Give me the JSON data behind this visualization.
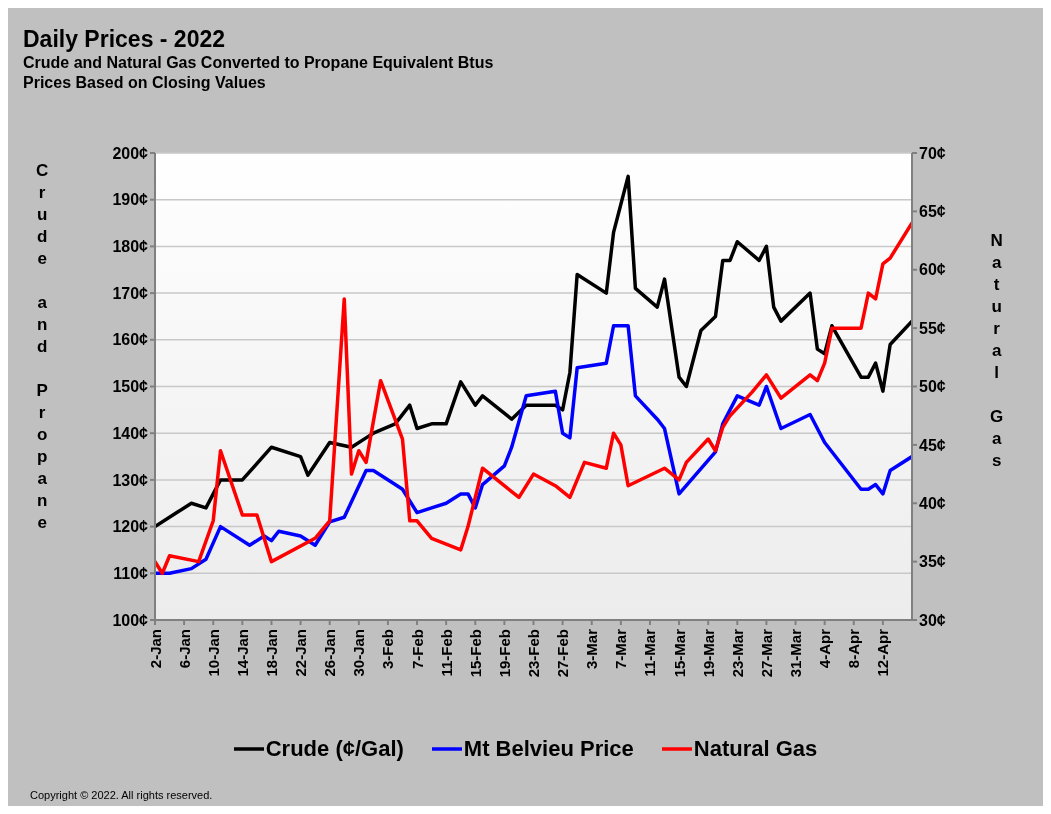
{
  "chart_data": {
    "type": "line",
    "title": "Daily Prices - 2022",
    "subtitle": "Crude and Natural Gas Converted to Propane Equivalent Btus\nPrices Based on Closing Values",
    "ylabel": "Crude and Propane",
    "y2label": "Natural Gas",
    "annotations": [
      "Copyright © 2022. All rights reserved."
    ],
    "xlim": [
      "--01-02",
      "--04-16"
    ],
    "xticks": [
      {
        "value": "--01-02",
        "label": "2-Jan"
      },
      {
        "value": "--01-06",
        "label": "6-Jan"
      },
      {
        "value": "--01-10",
        "label": "10-Jan"
      },
      {
        "value": "--01-14",
        "label": "14-Jan"
      },
      {
        "value": "--01-18",
        "label": "18-Jan"
      },
      {
        "value": "--01-22",
        "label": "22-Jan"
      },
      {
        "value": "--01-26",
        "label": "26-Jan"
      },
      {
        "value": "--01-30",
        "label": "30-Jan"
      },
      {
        "value": "--02-03",
        "label": "3-Feb"
      },
      {
        "value": "--02-07",
        "label": "7-Feb"
      },
      {
        "value": "--02-11",
        "label": "11-Feb"
      },
      {
        "value": "--02-15",
        "label": "15-Feb"
      },
      {
        "value": "--02-19",
        "label": "19-Feb"
      },
      {
        "value": "--02-23",
        "label": "23-Feb"
      },
      {
        "value": "--02-27",
        "label": "27-Feb"
      },
      {
        "value": "--03-03",
        "label": "3-Mar"
      },
      {
        "value": "--03-07",
        "label": "7-Mar"
      },
      {
        "value": "--03-11",
        "label": "11-Mar"
      },
      {
        "value": "--03-15",
        "label": "15-Mar"
      },
      {
        "value": "--03-19",
        "label": "19-Mar"
      },
      {
        "value": "--03-23",
        "label": "23-Mar"
      },
      {
        "value": "--03-27",
        "label": "27-Mar"
      },
      {
        "value": "--03-31",
        "label": "31-Mar"
      },
      {
        "value": "--04-04",
        "label": "4-Apr"
      },
      {
        "value": "--04-08",
        "label": "8-Apr"
      },
      {
        "value": "--04-12",
        "label": "12-Apr"
      }
    ],
    "ylim": [
      100,
      200
    ],
    "yticks": [
      {
        "value": 100,
        "label": "100¢"
      },
      {
        "value": 110,
        "label": "110¢"
      },
      {
        "value": 120,
        "label": "120¢"
      },
      {
        "value": 130,
        "label": "130¢"
      },
      {
        "value": 140,
        "label": "140¢"
      },
      {
        "value": 150,
        "label": "150¢"
      },
      {
        "value": 160,
        "label": "160¢"
      },
      {
        "value": 170,
        "label": "170¢"
      },
      {
        "value": 180,
        "label": "180¢"
      },
      {
        "value": 190,
        "label": "190¢"
      },
      {
        "value": 200,
        "label": "200¢"
      }
    ],
    "y2lim": [
      30,
      70
    ],
    "y2ticks": [
      {
        "value": 30,
        "label": "30¢"
      },
      {
        "value": 35,
        "label": "35¢"
      },
      {
        "value": 40,
        "label": "40¢"
      },
      {
        "value": 45,
        "label": "45¢"
      },
      {
        "value": 50,
        "label": "50¢"
      },
      {
        "value": 55,
        "label": "55¢"
      },
      {
        "value": 60,
        "label": "60¢"
      },
      {
        "value": 65,
        "label": "65¢"
      },
      {
        "value": 70,
        "label": "70¢"
      }
    ],
    "grid": "y",
    "legend": "bottom",
    "marker": "none",
    "line_style": "solid",
    "series": [
      {
        "name": "Crude (¢/Gal)",
        "color": "#000000",
        "x": [
          "--01-02",
          "--01-05",
          "--01-07",
          "--01-09",
          "--01-11",
          "--01-14",
          "--01-18",
          "--01-22",
          "--01-23",
          "--01-26",
          "--01-29",
          "--01-31",
          "--02-01",
          "--02-04",
          "--02-06",
          "--02-07",
          "--02-09",
          "--02-11",
          "--02-13",
          "--02-15",
          "--02-16",
          "--02-20",
          "--02-22",
          "--02-26",
          "--02-27",
          "--02-28",
          "--03-01",
          "--03-05",
          "--03-06",
          "--03-08",
          "--03-09",
          "--03-12",
          "--03-13",
          "--03-15",
          "--03-16",
          "--03-18",
          "--03-20",
          "--03-21",
          "--03-22",
          "--03-23",
          "--03-26",
          "--03-27",
          "--03-28",
          "--03-29",
          "--04-02",
          "--04-03",
          "--04-04",
          "--04-05",
          "--04-09",
          "--04-10",
          "--04-11",
          "--04-12",
          "--04-13",
          "--04-16"
        ],
        "values": [
          120,
          123,
          125,
          124,
          130,
          130,
          137,
          135,
          131,
          138,
          137,
          139,
          140,
          142,
          146,
          141,
          142,
          142,
          151,
          146,
          148,
          143,
          146,
          146,
          145,
          153,
          174,
          170,
          183,
          195,
          171,
          167,
          173,
          152,
          150,
          162,
          165,
          177,
          177,
          181,
          177,
          180,
          167,
          164,
          170,
          158,
          157,
          163,
          152,
          152,
          155,
          149,
          159,
          164
        ]
      },
      {
        "name": "Mt Belvieu Price",
        "color": "#0000ff",
        "x": [
          "--01-02",
          "--01-04",
          "--01-07",
          "--01-09",
          "--01-11",
          "--01-15",
          "--01-17",
          "--01-18",
          "--01-19",
          "--01-22",
          "--01-24",
          "--01-26",
          "--01-28",
          "--01-31",
          "--02-01",
          "--02-04",
          "--02-05",
          "--02-07",
          "--02-09",
          "--02-11",
          "--02-13",
          "--02-14",
          "--02-15",
          "--02-16",
          "--02-19",
          "--02-20",
          "--02-22",
          "--02-26",
          "--02-27",
          "--02-28",
          "--03-01",
          "--03-05",
          "--03-06",
          "--03-08",
          "--03-09",
          "--03-12",
          "--03-13",
          "--03-15",
          "--03-20",
          "--03-21",
          "--03-23",
          "--03-26",
          "--03-27",
          "--03-29",
          "--04-02",
          "--04-04",
          "--04-09",
          "--04-10",
          "--04-11",
          "--04-12",
          "--04-13",
          "--04-16"
        ],
        "values": [
          110,
          110,
          111,
          113,
          120,
          116,
          118,
          117,
          119,
          118,
          116,
          121,
          122,
          132,
          132,
          129,
          128,
          123,
          124,
          125,
          127,
          127,
          124,
          129,
          133,
          137,
          148,
          149,
          140,
          139,
          154,
          155,
          163,
          163,
          148,
          143,
          141,
          127,
          136,
          142,
          148,
          146,
          150,
          141,
          144,
          138,
          128,
          128,
          129,
          127,
          132,
          135
        ]
      },
      {
        "name": "Natural Gas",
        "color": "#ff0000",
        "axis": "y2",
        "x": [
          "--01-02",
          "--01-03",
          "--01-04",
          "--01-08",
          "--01-10",
          "--01-11",
          "--01-14",
          "--01-16",
          "--01-18",
          "--01-24",
          "--01-26",
          "--01-28",
          "--01-29",
          "--01-30",
          "--01-31",
          "--02-02",
          "--02-05",
          "--02-06",
          "--02-07",
          "--02-09",
          "--02-13",
          "--02-14",
          "--02-16",
          "--02-21",
          "--02-23",
          "--02-26",
          "--02-28",
          "--03-02",
          "--03-05",
          "--03-06",
          "--03-07",
          "--03-08",
          "--03-13",
          "--03-15",
          "--03-16",
          "--03-19",
          "--03-20",
          "--03-21",
          "--03-22",
          "--03-25",
          "--03-27",
          "--03-29",
          "--04-02",
          "--04-03",
          "--04-04",
          "--04-05",
          "--04-09",
          "--04-10",
          "--04-11",
          "--04-12",
          "--04-13",
          "--04-16"
        ],
        "values": [
          35,
          34,
          35.5,
          35,
          38.5,
          44.5,
          39,
          39,
          35,
          37,
          38.5,
          57.5,
          42.5,
          44.5,
          43.5,
          50.5,
          45.5,
          38.5,
          38.5,
          37,
          36,
          38,
          43,
          40.5,
          42.5,
          41.5,
          40.5,
          43.5,
          43,
          46,
          45,
          41.5,
          43,
          42,
          43.5,
          45.5,
          44.5,
          46.5,
          47.5,
          49.5,
          51,
          49,
          51,
          50.5,
          52,
          55,
          55,
          58,
          57.5,
          60.5,
          61,
          64
        ]
      }
    ]
  }
}
